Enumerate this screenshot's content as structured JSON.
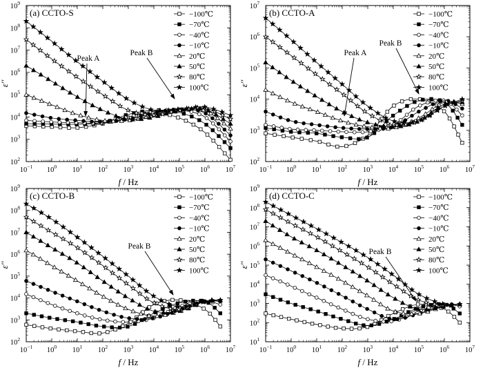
{
  "figure": {
    "xlabel_italic": "f",
    "xlabel_unit": " / Hz",
    "ylabel": "ε''",
    "legend": [
      "−100℃",
      "−70℃",
      "−40℃",
      "−10℃",
      "20℃",
      "50℃",
      "80℃",
      "100℃"
    ],
    "legend_markers": [
      "square-open",
      "square-filled",
      "circle-open",
      "circle-filled",
      "triangle-open",
      "triangle-filled",
      "star-open",
      "star-filled"
    ],
    "x_ticks": [
      -1,
      0,
      1,
      2,
      3,
      4,
      5,
      6,
      7
    ],
    "y_ticks": [
      2,
      3,
      4,
      5,
      6,
      7,
      8,
      9
    ]
  },
  "chart_data": [
    {
      "type": "line",
      "title": "(a) CCTO-S",
      "x_scale": "log",
      "y_scale": "log",
      "xlim": [
        0.1,
        10000000
      ],
      "ylim": [
        100,
        1000000000
      ],
      "annotations": [
        {
          "text": "Peak A",
          "points_to": [
            20,
            4800
          ]
        },
        {
          "text": "Peak B",
          "points_to": [
            300000,
            20000
          ]
        }
      ],
      "series": [
        {
          "name": "−100℃",
          "x": [
            0.1,
            1,
            10,
            100,
            1000,
            10000,
            100000,
            1000000,
            10000000
          ],
          "y": [
            4000,
            3600,
            3300,
            5000,
            10000,
            15000,
            9000,
            2000,
            120
          ]
        },
        {
          "name": "−70℃",
          "x": [
            0.1,
            1,
            10,
            100,
            1000,
            10000,
            100000,
            1000000,
            10000000
          ],
          "y": [
            5000,
            4800,
            4700,
            5500,
            13000,
            20000,
            16000,
            5000,
            400
          ]
        },
        {
          "name": "−40℃",
          "x": [
            0.1,
            1,
            10,
            100,
            1000,
            10000,
            100000,
            1000000,
            10000000
          ],
          "y": [
            7000,
            6000,
            5500,
            5500,
            10000,
            18000,
            20000,
            10000,
            800
          ]
        },
        {
          "name": "−10℃",
          "x": [
            0.1,
            1,
            10,
            100,
            1000,
            10000,
            100000,
            1000000,
            10000000
          ],
          "y": [
            15000,
            9000,
            7000,
            6000,
            8000,
            15000,
            22000,
            15000,
            1500
          ]
        },
        {
          "name": "20℃",
          "x": [
            0.1,
            1,
            10,
            100,
            1000,
            10000,
            100000,
            1000000,
            10000000
          ],
          "y": [
            100000,
            35000,
            13000,
            7000,
            7000,
            12000,
            22000,
            20000,
            3000
          ]
        },
        {
          "name": "50℃",
          "x": [
            0.1,
            1,
            10,
            100,
            1000,
            10000,
            100000,
            1000000,
            10000000
          ],
          "y": [
            2000000,
            400000,
            80000,
            20000,
            8000,
            10000,
            20000,
            22000,
            5000
          ]
        },
        {
          "name": "80℃",
          "x": [
            0.1,
            1,
            10,
            100,
            1000,
            10000,
            100000,
            1000000,
            10000000
          ],
          "y": [
            30000000,
            4000000,
            600000,
            100000,
            20000,
            12000,
            20000,
            25000,
            8000
          ]
        },
        {
          "name": "100℃",
          "x": [
            0.1,
            1,
            10,
            100,
            1000,
            10000,
            100000,
            1000000,
            10000000
          ],
          "y": [
            200000000,
            25000000,
            3000000,
            400000,
            60000,
            20000,
            22000,
            28000,
            12000
          ]
        }
      ]
    },
    {
      "type": "line",
      "title": "(b) CCTO-A",
      "x_scale": "log",
      "y_scale": "log",
      "xlim": [
        0.1,
        10000000
      ],
      "ylim": [
        100,
        10000000
      ],
      "annotations": [
        {
          "text": "Peak A",
          "points_to": [
            200,
            1500
          ]
        },
        {
          "text": "Peak B",
          "points_to": [
            200000,
            9000
          ]
        }
      ],
      "series": [
        {
          "name": "−100℃",
          "x": [
            0.1,
            1,
            10,
            100,
            1000,
            10000,
            100000,
            1000000,
            5000000
          ],
          "y": [
            800,
            600,
            450,
            300,
            700,
            6000,
            10000,
            4000,
            400
          ]
        },
        {
          "name": "−70℃",
          "x": [
            0.1,
            1,
            10,
            100,
            1000,
            10000,
            100000,
            1000000,
            5000000
          ],
          "y": [
            1200,
            900,
            800,
            600,
            600,
            3000,
            9000,
            8000,
            1500
          ]
        },
        {
          "name": "−40℃",
          "x": [
            0.1,
            1,
            10,
            100,
            1000,
            10000,
            100000,
            1000000,
            5000000
          ],
          "y": [
            1500,
            1100,
            1000,
            900,
            900,
            1500,
            6000,
            9000,
            3000
          ]
        },
        {
          "name": "−10℃",
          "x": [
            0.1,
            1,
            10,
            100,
            1000,
            10000,
            100000,
            1000000,
            5000000
          ],
          "y": [
            4000,
            2000,
            1500,
            1200,
            1100,
            1300,
            4000,
            9000,
            5000
          ]
        },
        {
          "name": "20℃",
          "x": [
            0.1,
            1,
            10,
            100,
            1000,
            10000,
            100000,
            1000000,
            5000000
          ],
          "y": [
            20000,
            8000,
            4000,
            2000,
            1300,
            1200,
            2500,
            8000,
            7000
          ]
        },
        {
          "name": "50℃",
          "x": [
            0.1,
            1,
            10,
            100,
            1000,
            10000,
            100000,
            1000000,
            5000000
          ],
          "y": [
            150000,
            40000,
            12000,
            4000,
            1800,
            1300,
            2000,
            7000,
            8000
          ]
        },
        {
          "name": "80℃",
          "x": [
            0.1,
            1,
            10,
            100,
            1000,
            10000,
            100000,
            1000000,
            5000000
          ],
          "y": [
            1000000,
            250000,
            60000,
            15000,
            3500,
            1500,
            2000,
            6000,
            9000
          ]
        },
        {
          "name": "100℃",
          "x": [
            0.1,
            1,
            10,
            100,
            1000,
            10000,
            100000,
            1000000,
            5000000
          ],
          "y": [
            4000000,
            800000,
            150000,
            30000,
            6000,
            2000,
            2000,
            6000,
            10000
          ]
        }
      ]
    },
    {
      "type": "line",
      "title": "(c) CCTO-B",
      "x_scale": "log",
      "y_scale": "log",
      "xlim": [
        0.1,
        10000000
      ],
      "ylim": [
        100,
        1000000000
      ],
      "annotations": [
        {
          "text": "Peak B",
          "points_to": [
            100000,
            8000
          ]
        }
      ],
      "series": [
        {
          "name": "−100℃",
          "x": [
            0.1,
            1,
            10,
            100,
            1000,
            10000,
            100000,
            1000000,
            4000000
          ],
          "y": [
            600,
            400,
            300,
            250,
            700,
            5000,
            8000,
            3000,
            500
          ]
        },
        {
          "name": "−70℃",
          "x": [
            0.1,
            1,
            10,
            100,
            1000,
            10000,
            100000,
            1000000,
            4000000
          ],
          "y": [
            2000,
            1200,
            800,
            500,
            500,
            2000,
            6000,
            7000,
            2000
          ]
        },
        {
          "name": "−40℃",
          "x": [
            0.1,
            1,
            10,
            100,
            1000,
            10000,
            100000,
            1000000,
            4000000
          ],
          "y": [
            15000,
            5000,
            2000,
            1000,
            800,
            1200,
            4000,
            7000,
            5000
          ]
        },
        {
          "name": "−10℃",
          "x": [
            0.1,
            1,
            10,
            100,
            1000,
            10000,
            100000,
            1000000,
            4000000
          ],
          "y": [
            60000,
            20000,
            7000,
            2500,
            1200,
            1200,
            3000,
            7000,
            7000
          ]
        },
        {
          "name": "20℃",
          "x": [
            0.1,
            1,
            10,
            100,
            1000,
            10000,
            100000,
            1000000,
            4000000
          ],
          "y": [
            1500000,
            300000,
            60000,
            12000,
            3000,
            1500,
            2500,
            7000,
            8000
          ]
        },
        {
          "name": "50℃",
          "x": [
            0.1,
            1,
            10,
            100,
            1000,
            10000,
            100000,
            1000000,
            4000000
          ],
          "y": [
            10000000,
            2000000,
            400000,
            60000,
            10000,
            2500,
            2500,
            7000,
            8000
          ]
        },
        {
          "name": "80℃",
          "x": [
            0.1,
            1,
            10,
            100,
            1000,
            10000,
            100000,
            1000000,
            4000000
          ],
          "y": [
            50000000,
            10000000,
            2000000,
            300000,
            40000,
            6000,
            3000,
            7000,
            8000
          ]
        },
        {
          "name": "100℃",
          "x": [
            0.1,
            1,
            10,
            100,
            1000,
            10000,
            100000,
            1000000,
            4000000
          ],
          "y": [
            200000000,
            40000000,
            6000000,
            800000,
            100000,
            12000,
            4000,
            7000,
            8000
          ]
        }
      ]
    },
    {
      "type": "line",
      "title": "(d) CCTO-C",
      "x_scale": "log",
      "y_scale": "log",
      "xlim": [
        0.1,
        10000000
      ],
      "ylim": [
        10,
        1000000000
      ],
      "annotations": [
        {
          "text": "Peak B",
          "points_to": [
            80000,
            900
          ]
        }
      ],
      "series": [
        {
          "name": "−100℃",
          "x": [
            0.1,
            1,
            10,
            100,
            1000,
            10000,
            100000,
            1000000,
            4000000
          ],
          "y": [
            300,
            150,
            80,
            50,
            60,
            300,
            900,
            500,
            100
          ]
        },
        {
          "name": "−70℃",
          "x": [
            0.1,
            1,
            10,
            100,
            1000,
            10000,
            100000,
            1000000,
            4000000
          ],
          "y": [
            3000,
            1000,
            400,
            150,
            70,
            150,
            600,
            900,
            300
          ]
        },
        {
          "name": "−40℃",
          "x": [
            0.1,
            1,
            10,
            100,
            1000,
            10000,
            100000,
            1000000,
            4000000
          ],
          "y": [
            30000,
            8000,
            2000,
            500,
            150,
            120,
            400,
            900,
            700
          ]
        },
        {
          "name": "−10℃",
          "x": [
            0.1,
            1,
            10,
            100,
            1000,
            10000,
            100000,
            1000000,
            4000000
          ],
          "y": [
            200000,
            50000,
            12000,
            2500,
            500,
            150,
            300,
            800,
            900
          ]
        },
        {
          "name": "20℃",
          "x": [
            0.1,
            1,
            10,
            100,
            1000,
            10000,
            100000,
            1000000,
            4000000
          ],
          "y": [
            2000000,
            400000,
            80000,
            15000,
            2500,
            400,
            300,
            700,
            900
          ]
        },
        {
          "name": "50℃",
          "x": [
            0.1,
            1,
            10,
            100,
            1000,
            10000,
            100000,
            1000000,
            4000000
          ],
          "y": [
            20000000,
            3000000,
            600000,
            100000,
            15000,
            2000,
            500,
            700,
            900
          ]
        },
        {
          "name": "80℃",
          "x": [
            0.1,
            1,
            10,
            100,
            1000,
            10000,
            100000,
            1000000,
            4000000
          ],
          "y": [
            80000000,
            15000000,
            3000000,
            500000,
            80000,
            10000,
            1500,
            800,
            900
          ]
        },
        {
          "name": "100℃",
          "x": [
            0.1,
            1,
            10,
            100,
            1000,
            10000,
            100000,
            1000000,
            4000000
          ],
          "y": [
            200000000,
            40000000,
            8000000,
            1500000,
            250000,
            30000,
            3000,
            900,
            900
          ]
        }
      ]
    }
  ]
}
